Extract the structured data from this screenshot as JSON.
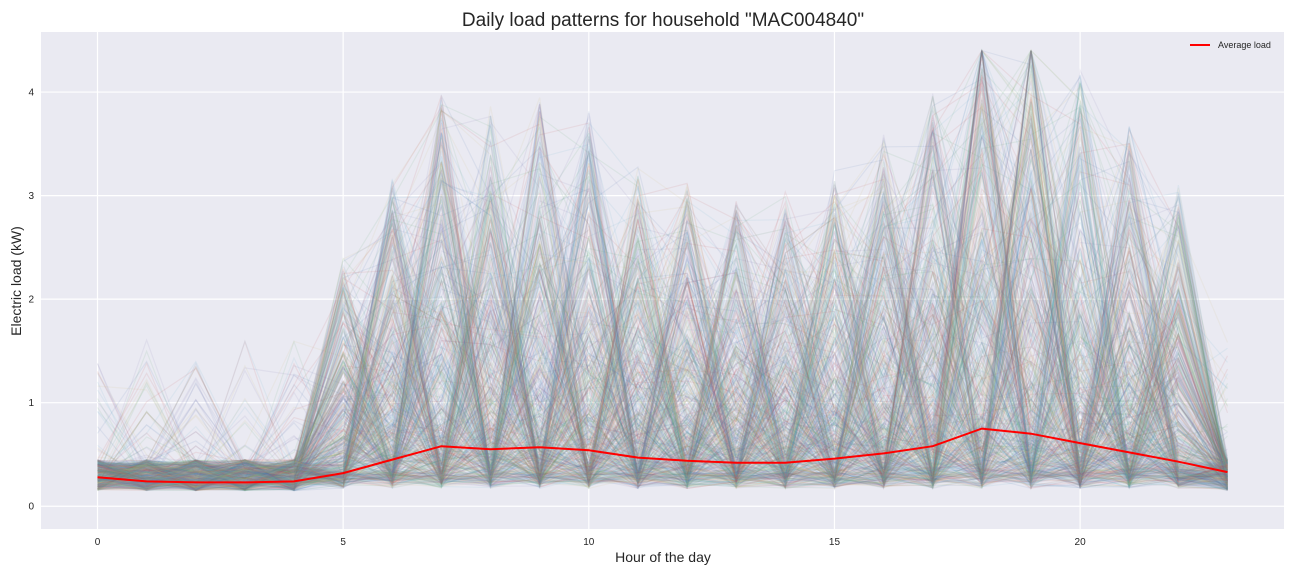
{
  "chart_data": {
    "type": "line",
    "title": "Daily load patterns for household \"MAC004840\"",
    "xlabel": "Hour of the day",
    "ylabel": "Electric load (kW)",
    "xlim": [
      -1.15,
      24.15
    ],
    "ylim": [
      -0.22,
      4.58
    ],
    "x_ticks": [
      0,
      5,
      10,
      15,
      20
    ],
    "y_ticks": [
      0,
      1,
      2,
      3,
      4
    ],
    "grid": true,
    "legend_position": "top-right",
    "x": [
      0,
      1,
      2,
      3,
      4,
      5,
      6,
      7,
      8,
      9,
      10,
      11,
      12,
      13,
      14,
      15,
      16,
      17,
      18,
      19,
      20,
      21,
      22,
      23
    ],
    "series": [
      {
        "name": "Average load",
        "color": "#ff0000",
        "values": [
          0.28,
          0.24,
          0.23,
          0.23,
          0.24,
          0.32,
          0.45,
          0.58,
          0.55,
          0.57,
          0.54,
          0.47,
          0.44,
          0.42,
          0.42,
          0.46,
          0.51,
          0.58,
          0.75,
          0.7,
          0.61,
          0.52,
          0.43,
          0.33
        ]
      }
    ],
    "daily_profiles": {
      "description_count": 600,
      "opacity": 0.1,
      "colors": [
        "#4c72b0",
        "#55a868",
        "#c44e52",
        "#8172b2",
        "#ccb974",
        "#64b5cd"
      ]
    }
  },
  "colors": {
    "plot_background": "#eaeaf2",
    "grid": "#ffffff",
    "average_line": "#ff0000"
  }
}
